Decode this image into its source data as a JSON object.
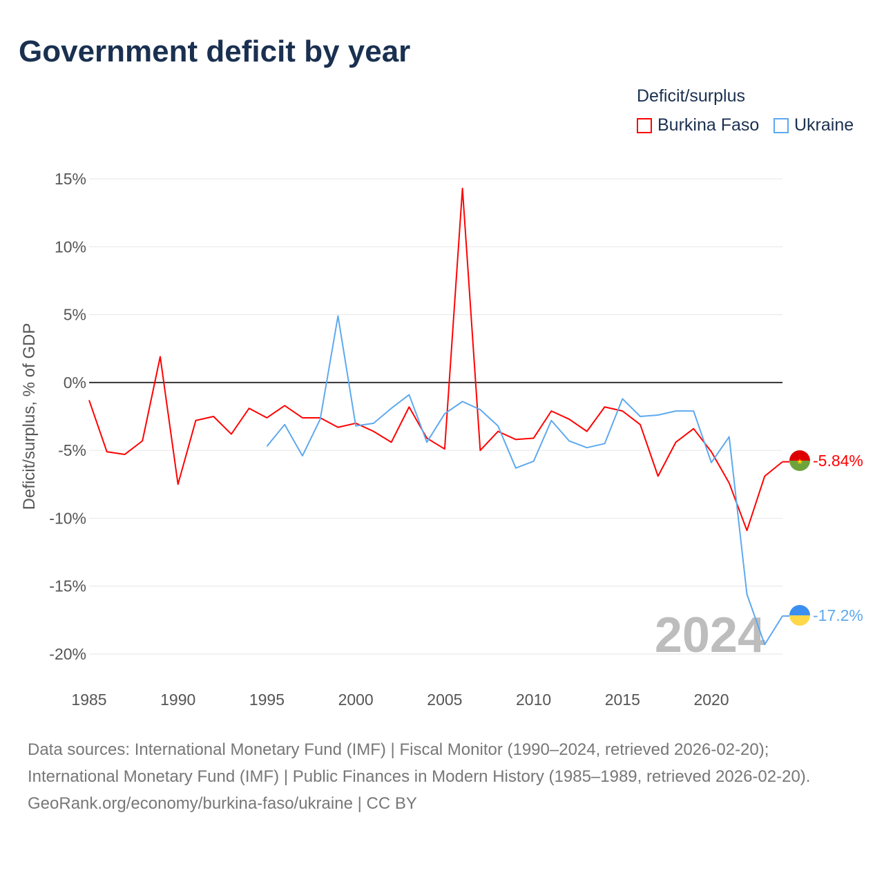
{
  "title": "Government deficit by year",
  "legend": {
    "title": "Deficit/surplus",
    "items": [
      {
        "name": "Burkina Faso",
        "color": "#ff0000"
      },
      {
        "name": "Ukraine",
        "color": "#5ea9ee"
      }
    ]
  },
  "year_label": "2024",
  "sources": [
    "Data sources: International Monetary Fund (IMF) | Fiscal Monitor (1990–2024, retrieved 2026-02-20); International Monetary Fund (IMF) | Public Finances in Modern History (1985–1989, retrieved 2026-02-20).",
    "GeoRank.org/economy/burkina-faso/ukraine | CC BY"
  ],
  "chart_data": {
    "type": "line",
    "title": "Government deficit by year",
    "xlabel": "",
    "ylabel": "Deficit/surplus, % of GDP",
    "xlim": [
      1985,
      2024
    ],
    "ylim": [
      -20,
      15
    ],
    "xticks": [
      1985,
      1990,
      1995,
      2000,
      2005,
      2010,
      2015,
      2020
    ],
    "yticks": [
      15,
      10,
      5,
      0,
      -5,
      -10,
      -15,
      -20
    ],
    "ytick_labels": [
      "15%",
      "10%",
      "5%",
      "0%",
      "-5%",
      "-10%",
      "-15%",
      "-20%"
    ],
    "grid": true,
    "legend_position": "top-right",
    "series": [
      {
        "name": "Burkina Faso",
        "color": "#ff0000",
        "end_label": "-5.84%",
        "x": [
          1985,
          1986,
          1987,
          1988,
          1989,
          1990,
          1991,
          1992,
          1993,
          1994,
          1995,
          1996,
          1997,
          1998,
          1999,
          2000,
          2001,
          2002,
          2003,
          2004,
          2005,
          2006,
          2007,
          2008,
          2009,
          2010,
          2011,
          2012,
          2013,
          2014,
          2015,
          2016,
          2017,
          2018,
          2019,
          2020,
          2021,
          2022,
          2023,
          2024
        ],
        "values": [
          -1.3,
          -5.1,
          -5.3,
          -4.3,
          1.9,
          -7.5,
          -2.8,
          -2.5,
          -3.8,
          -1.9,
          -2.6,
          -1.7,
          -2.6,
          -2.6,
          -3.3,
          -3.0,
          -3.6,
          -4.4,
          -1.8,
          -4.1,
          -4.9,
          14.3,
          -5.0,
          -3.6,
          -4.2,
          -4.1,
          -2.1,
          -2.7,
          -3.6,
          -1.8,
          -2.1,
          -3.1,
          -6.9,
          -4.4,
          -3.4,
          -5.1,
          -7.4,
          -10.9,
          -6.9,
          -5.84
        ]
      },
      {
        "name": "Ukraine",
        "color": "#5ea9ee",
        "end_label": "-17.2%",
        "x": [
          1995,
          1996,
          1997,
          1998,
          1999,
          2000,
          2001,
          2002,
          2003,
          2004,
          2005,
          2006,
          2007,
          2008,
          2009,
          2010,
          2011,
          2012,
          2013,
          2014,
          2015,
          2016,
          2017,
          2018,
          2019,
          2020,
          2021,
          2022,
          2023,
          2024
        ],
        "values": [
          -4.7,
          -3.1,
          -5.4,
          -2.7,
          4.9,
          -3.2,
          -3.0,
          -1.9,
          -0.9,
          -4.4,
          -2.3,
          -1.4,
          -2.0,
          -3.2,
          -6.3,
          -5.8,
          -2.8,
          -4.3,
          -4.8,
          -4.5,
          -1.2,
          -2.5,
          -2.4,
          -2.1,
          -2.1,
          -5.9,
          -4.0,
          -15.6,
          -19.3,
          -17.2
        ]
      }
    ]
  }
}
